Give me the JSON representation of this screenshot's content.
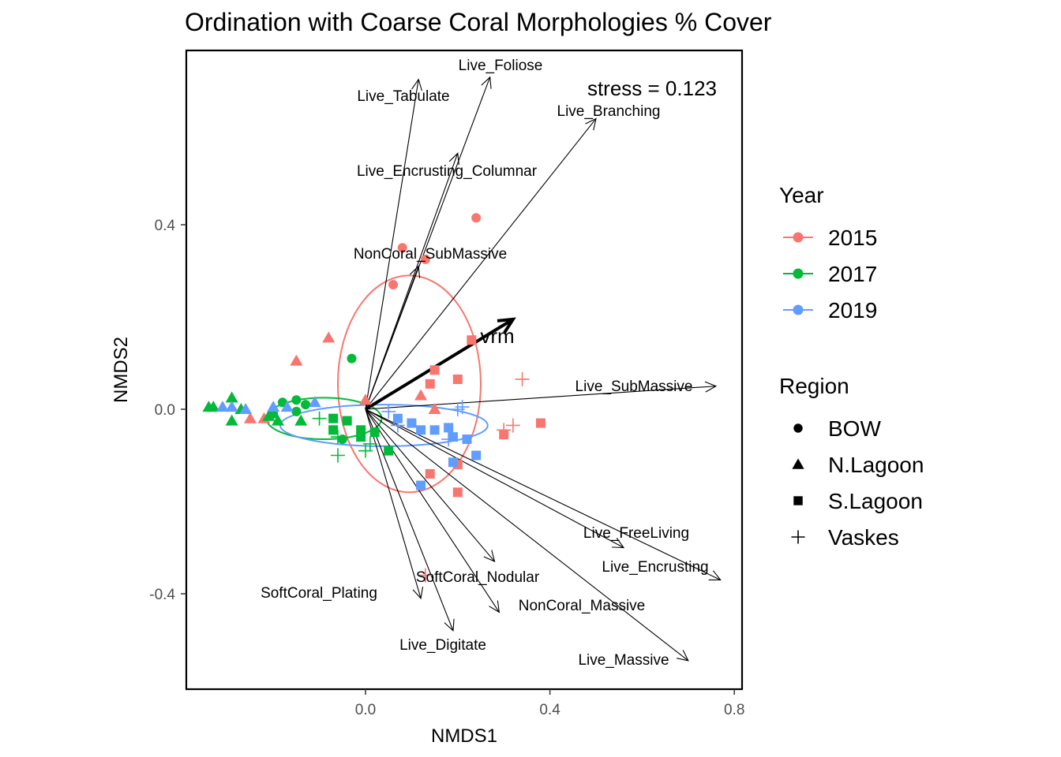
{
  "chart_data": {
    "type": "scatter",
    "title": "Ordination with Coarse Coral Morphologies % Cover",
    "xlabel": "NMDS1",
    "ylabel": "NMDS2",
    "xlim": [
      -0.4,
      0.82
    ],
    "ylim": [
      -0.6,
      0.78
    ],
    "x_ticks": [
      0.0,
      0.4,
      0.8
    ],
    "x_tick_labels": [
      "0.0",
      "0.4",
      "0.8"
    ],
    "y_ticks": [
      -0.4,
      0.0,
      0.4
    ],
    "y_tick_labels": [
      "-0.4",
      "0.0",
      "0.4"
    ],
    "grid": false,
    "stress_label": "stress = 0.123",
    "legend_position": "right",
    "colors": {
      "2015": "#F8766D",
      "2017": "#00BA38",
      "2019": "#619CFF"
    },
    "legend_year": {
      "title": "Year",
      "items": [
        "2015",
        "2017",
        "2019"
      ]
    },
    "legend_region": {
      "title": "Region",
      "items": [
        "BOW",
        "N.Lagoon",
        "S.Lagoon",
        "Vaskes"
      ]
    },
    "series": [
      {
        "year": "2015",
        "points": [
          {
            "x": 0.24,
            "y": 0.415,
            "region": "BOW"
          },
          {
            "x": 0.08,
            "y": 0.35,
            "region": "BOW"
          },
          {
            "x": 0.13,
            "y": 0.325,
            "region": "BOW"
          },
          {
            "x": 0.06,
            "y": 0.27,
            "region": "BOW"
          },
          {
            "x": -0.08,
            "y": 0.155,
            "region": "N.Lagoon"
          },
          {
            "x": -0.15,
            "y": 0.105,
            "region": "N.Lagoon"
          },
          {
            "x": 0.0,
            "y": 0.02,
            "region": "N.Lagoon"
          },
          {
            "x": 0.12,
            "y": 0.03,
            "region": "N.Lagoon"
          },
          {
            "x": 0.15,
            "y": 0.0,
            "region": "N.Lagoon"
          },
          {
            "x": -0.25,
            "y": -0.02,
            "region": "N.Lagoon"
          },
          {
            "x": -0.22,
            "y": -0.02,
            "region": "N.Lagoon"
          },
          {
            "x": 0.23,
            "y": 0.15,
            "region": "S.Lagoon"
          },
          {
            "x": 0.15,
            "y": 0.085,
            "region": "S.Lagoon"
          },
          {
            "x": 0.14,
            "y": 0.055,
            "region": "S.Lagoon"
          },
          {
            "x": 0.2,
            "y": 0.065,
            "region": "S.Lagoon"
          },
          {
            "x": 0.3,
            "y": -0.055,
            "region": "S.Lagoon"
          },
          {
            "x": 0.38,
            "y": -0.03,
            "region": "S.Lagoon"
          },
          {
            "x": 0.2,
            "y": -0.12,
            "region": "S.Lagoon"
          },
          {
            "x": 0.14,
            "y": -0.14,
            "region": "S.Lagoon"
          },
          {
            "x": 0.2,
            "y": -0.18,
            "region": "S.Lagoon"
          },
          {
            "x": 0.34,
            "y": 0.065,
            "region": "Vaskes"
          },
          {
            "x": 0.32,
            "y": -0.035,
            "region": "Vaskes"
          },
          {
            "x": 0.3,
            "y": -0.045,
            "region": "Vaskes"
          },
          {
            "x": 0.13,
            "y": -0.36,
            "region": "Vaskes"
          }
        ]
      },
      {
        "year": "2017",
        "points": [
          {
            "x": -0.03,
            "y": 0.11,
            "region": "BOW"
          },
          {
            "x": -0.18,
            "y": 0.015,
            "region": "BOW"
          },
          {
            "x": -0.15,
            "y": 0.02,
            "region": "BOW"
          },
          {
            "x": -0.13,
            "y": 0.01,
            "region": "BOW"
          },
          {
            "x": -0.2,
            "y": -0.01,
            "region": "BOW"
          },
          {
            "x": -0.15,
            "y": -0.005,
            "region": "BOW"
          },
          {
            "x": -0.05,
            "y": -0.065,
            "region": "BOW"
          },
          {
            "x": -0.29,
            "y": 0.025,
            "region": "N.Lagoon"
          },
          {
            "x": -0.33,
            "y": 0.005,
            "region": "N.Lagoon"
          },
          {
            "x": -0.34,
            "y": 0.005,
            "region": "N.Lagoon"
          },
          {
            "x": -0.27,
            "y": 0.0,
            "region": "N.Lagoon"
          },
          {
            "x": -0.29,
            "y": -0.025,
            "region": "N.Lagoon"
          },
          {
            "x": -0.21,
            "y": -0.015,
            "region": "N.Lagoon"
          },
          {
            "x": -0.19,
            "y": -0.025,
            "region": "N.Lagoon"
          },
          {
            "x": -0.14,
            "y": -0.025,
            "region": "N.Lagoon"
          },
          {
            "x": -0.07,
            "y": -0.02,
            "region": "S.Lagoon"
          },
          {
            "x": -0.04,
            "y": -0.025,
            "region": "S.Lagoon"
          },
          {
            "x": -0.07,
            "y": -0.045,
            "region": "S.Lagoon"
          },
          {
            "x": -0.01,
            "y": -0.045,
            "region": "S.Lagoon"
          },
          {
            "x": -0.01,
            "y": -0.06,
            "region": "S.Lagoon"
          },
          {
            "x": 0.02,
            "y": -0.05,
            "region": "S.Lagoon"
          },
          {
            "x": 0.05,
            "y": -0.09,
            "region": "S.Lagoon"
          },
          {
            "x": -0.1,
            "y": -0.02,
            "region": "Vaskes"
          },
          {
            "x": -0.06,
            "y": -0.06,
            "region": "Vaskes"
          },
          {
            "x": -0.06,
            "y": -0.1,
            "region": "Vaskes"
          },
          {
            "x": 0.0,
            "y": -0.09,
            "region": "Vaskes"
          },
          {
            "x": 0.01,
            "y": -0.075,
            "region": "Vaskes"
          }
        ]
      },
      {
        "year": "2019",
        "points": [
          {
            "x": -0.31,
            "y": 0.005,
            "region": "N.Lagoon"
          },
          {
            "x": -0.29,
            "y": 0.005,
            "region": "N.Lagoon"
          },
          {
            "x": -0.26,
            "y": 0.0,
            "region": "N.Lagoon"
          },
          {
            "x": -0.2,
            "y": 0.005,
            "region": "N.Lagoon"
          },
          {
            "x": -0.17,
            "y": 0.005,
            "region": "N.Lagoon"
          },
          {
            "x": -0.11,
            "y": 0.015,
            "region": "N.Lagoon"
          },
          {
            "x": 0.07,
            "y": -0.02,
            "region": "S.Lagoon"
          },
          {
            "x": 0.1,
            "y": -0.03,
            "region": "S.Lagoon"
          },
          {
            "x": 0.12,
            "y": -0.045,
            "region": "S.Lagoon"
          },
          {
            "x": 0.15,
            "y": -0.045,
            "region": "S.Lagoon"
          },
          {
            "x": 0.18,
            "y": -0.04,
            "region": "S.Lagoon"
          },
          {
            "x": 0.19,
            "y": -0.06,
            "region": "S.Lagoon"
          },
          {
            "x": 0.22,
            "y": -0.065,
            "region": "S.Lagoon"
          },
          {
            "x": 0.24,
            "y": -0.1,
            "region": "S.Lagoon"
          },
          {
            "x": 0.19,
            "y": -0.115,
            "region": "S.Lagoon"
          },
          {
            "x": 0.12,
            "y": -0.165,
            "region": "S.Lagoon"
          },
          {
            "x": 0.05,
            "y": -0.005,
            "region": "Vaskes"
          },
          {
            "x": 0.07,
            "y": -0.035,
            "region": "Vaskes"
          },
          {
            "x": 0.2,
            "y": 0.0,
            "region": "Vaskes"
          },
          {
            "x": 0.21,
            "y": 0.005,
            "region": "Vaskes"
          },
          {
            "x": 0.18,
            "y": -0.065,
            "region": "Vaskes"
          }
        ]
      }
    ],
    "ellipses": [
      {
        "year": "2015",
        "cx": 0.095,
        "cy": 0.055,
        "rx": 0.155,
        "ry": 0.235
      },
      {
        "year": "2017",
        "cx": -0.09,
        "cy": -0.02,
        "rx": 0.125,
        "ry": 0.045
      },
      {
        "year": "2019",
        "cx": 0.04,
        "cy": -0.035,
        "rx": 0.225,
        "ry": 0.045
      }
    ],
    "vectors": [
      {
        "name": "Live_Foliose",
        "x": 0.27,
        "y": 0.72
      },
      {
        "name": "Live_Tabulate",
        "x": 0.115,
        "y": 0.715
      },
      {
        "name": "Live_Branching",
        "x": 0.5,
        "y": 0.63
      },
      {
        "name": "Live_Encrusting_Columnar",
        "x": 0.2,
        "y": 0.555
      },
      {
        "name": "NonCoral_SubMassive",
        "x": 0.115,
        "y": 0.31
      },
      {
        "name": "Live_SubMassive",
        "x": 0.76,
        "y": 0.05
      },
      {
        "name": "Live_FreeLiving",
        "x": 0.56,
        "y": -0.3
      },
      {
        "name": "Live_Encrusting",
        "x": 0.77,
        "y": -0.37
      },
      {
        "name": "Live_Massive",
        "x": 0.7,
        "y": -0.545
      },
      {
        "name": "SoftCoral_Nodular",
        "x": 0.28,
        "y": -0.33
      },
      {
        "name": "NonCoral_Massive",
        "x": 0.29,
        "y": -0.44
      },
      {
        "name": "SoftCoral_Plating",
        "x": 0.12,
        "y": -0.41
      },
      {
        "name": "Live_Digitate",
        "x": 0.19,
        "y": -0.48
      },
      {
        "name": "vrm",
        "x": 0.32,
        "y": 0.195,
        "bold": true
      }
    ]
  }
}
